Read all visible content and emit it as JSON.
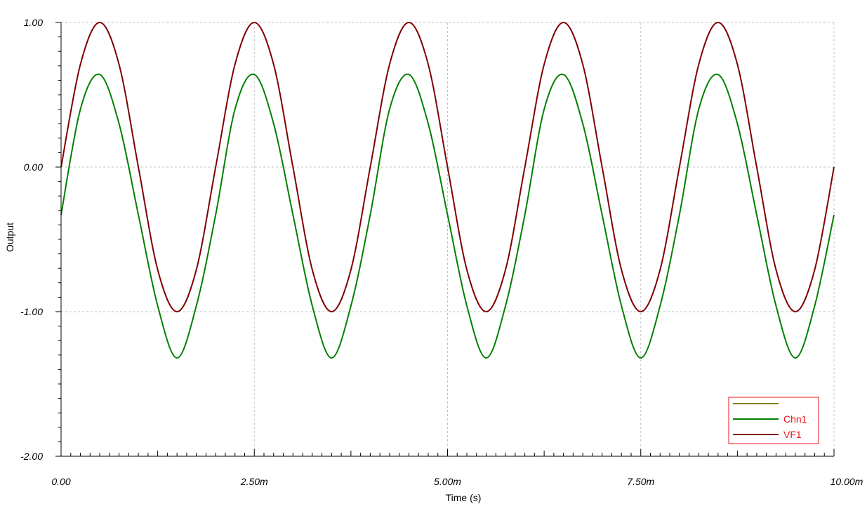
{
  "chart_data": {
    "type": "line",
    "title": "",
    "xlabel": "Time (s)",
    "ylabel": "Output",
    "xlim": [
      0,
      0.01
    ],
    "ylim": [
      -2,
      1
    ],
    "x_ticks": [
      {
        "value": 0,
        "label": "0.00"
      },
      {
        "value": 0.0025,
        "label": "2.50m"
      },
      {
        "value": 0.005,
        "label": "5.00m"
      },
      {
        "value": 0.0075,
        "label": "7.50m"
      },
      {
        "value": 0.01,
        "label": "10.00m"
      }
    ],
    "y_ticks": [
      {
        "value": 1,
        "label": "1.00"
      },
      {
        "value": 0,
        "label": "0.00"
      },
      {
        "value": -1,
        "label": "-1.00"
      },
      {
        "value": -2,
        "label": "-2.00"
      }
    ],
    "grid": true,
    "legend_position": "bottom-right",
    "series": [
      {
        "name": "",
        "color": "#808000",
        "x": [],
        "y": []
      },
      {
        "name": "Chn1",
        "color": "#008000",
        "x": [
          0,
          0.00025,
          0.0005,
          0.00075,
          0.001,
          0.00125,
          0.0015,
          0.00175,
          0.002,
          0.00225,
          0.0025,
          0.00275,
          0.003,
          0.00325,
          0.0035,
          0.00375,
          0.004,
          0.00425,
          0.0045,
          0.00475,
          0.005,
          0.00525,
          0.0055,
          0.00575,
          0.006,
          0.00625,
          0.0065,
          0.00675,
          0.007,
          0.00725,
          0.0075,
          0.00775,
          0.008,
          0.00825,
          0.0085,
          0.00875,
          0.009,
          0.00925,
          0.0095,
          0.00975,
          0.01
        ],
        "y": [
          -0.33,
          0.4,
          0.64,
          0.3,
          -0.33,
          -0.96,
          -1.32,
          -0.96,
          -0.33,
          0.4,
          0.64,
          0.3,
          -0.33,
          -0.96,
          -1.32,
          -0.96,
          -0.33,
          0.4,
          0.64,
          0.3,
          -0.33,
          -0.96,
          -1.32,
          -0.96,
          -0.33,
          0.4,
          0.64,
          0.3,
          -0.33,
          -0.96,
          -1.32,
          -0.96,
          -0.33,
          0.4,
          0.64,
          0.3,
          -0.33,
          -0.96,
          -1.32,
          -0.96,
          -0.33
        ]
      },
      {
        "name": "VF1",
        "color": "#800000",
        "x": [
          0,
          0.00025,
          0.0005,
          0.00075,
          0.001,
          0.00125,
          0.0015,
          0.00175,
          0.002,
          0.00225,
          0.0025,
          0.00275,
          0.003,
          0.00325,
          0.0035,
          0.00375,
          0.004,
          0.00425,
          0.0045,
          0.00475,
          0.005,
          0.00525,
          0.0055,
          0.00575,
          0.006,
          0.00625,
          0.0065,
          0.00675,
          0.007,
          0.00725,
          0.0075,
          0.00775,
          0.008,
          0.00825,
          0.0085,
          0.00875,
          0.009,
          0.00925,
          0.0095,
          0.00975,
          0.01
        ],
        "y": [
          0.0,
          0.71,
          1.0,
          0.71,
          0.0,
          -0.71,
          -1.0,
          -0.71,
          0.0,
          0.71,
          1.0,
          0.71,
          0.0,
          -0.71,
          -1.0,
          -0.71,
          0.0,
          0.71,
          1.0,
          0.71,
          0.0,
          -0.71,
          -1.0,
          -0.71,
          0.0,
          0.71,
          1.0,
          0.71,
          0.0,
          -0.71,
          -1.0,
          -0.71,
          0.0,
          0.71,
          1.0,
          0.71,
          0.0,
          -0.71,
          -1.0,
          -0.71,
          0.0
        ]
      }
    ]
  }
}
